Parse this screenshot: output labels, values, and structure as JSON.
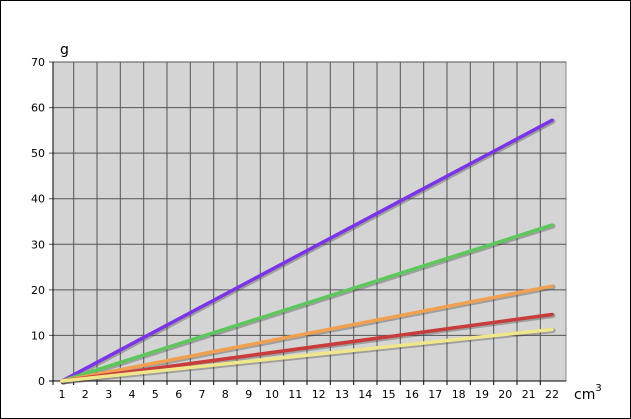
{
  "chart_data": {
    "type": "line",
    "title": "",
    "xlabel": "cm",
    "xlabel_superscript": "3",
    "ylabel": "g",
    "xlim": [
      1,
      22
    ],
    "ylim": [
      0,
      70
    ],
    "x_ticks": [
      1,
      2,
      3,
      4,
      5,
      6,
      7,
      8,
      9,
      10,
      11,
      12,
      13,
      14,
      15,
      16,
      17,
      18,
      19,
      20,
      21,
      22
    ],
    "y_ticks": [
      0,
      10,
      20,
      30,
      40,
      50,
      60,
      70
    ],
    "grid": true,
    "legend": "none",
    "plot_background": "#d4d4d4",
    "grid_color": "#555555",
    "series": [
      {
        "color": "#7b35e6",
        "points": [
          [
            1,
            0
          ],
          [
            22,
            57.2
          ]
        ]
      },
      {
        "color": "#5cc85c",
        "points": [
          [
            1,
            0
          ],
          [
            22,
            34.2
          ]
        ]
      },
      {
        "color": "#f0a050",
        "points": [
          [
            1,
            0
          ],
          [
            22,
            20.8
          ]
        ]
      },
      {
        "color": "#c83c3c",
        "points": [
          [
            1,
            0
          ],
          [
            22,
            14.6
          ]
        ]
      },
      {
        "color": "#f0e68c",
        "points": [
          [
            1,
            0
          ],
          [
            22,
            11.3
          ]
        ]
      }
    ]
  }
}
